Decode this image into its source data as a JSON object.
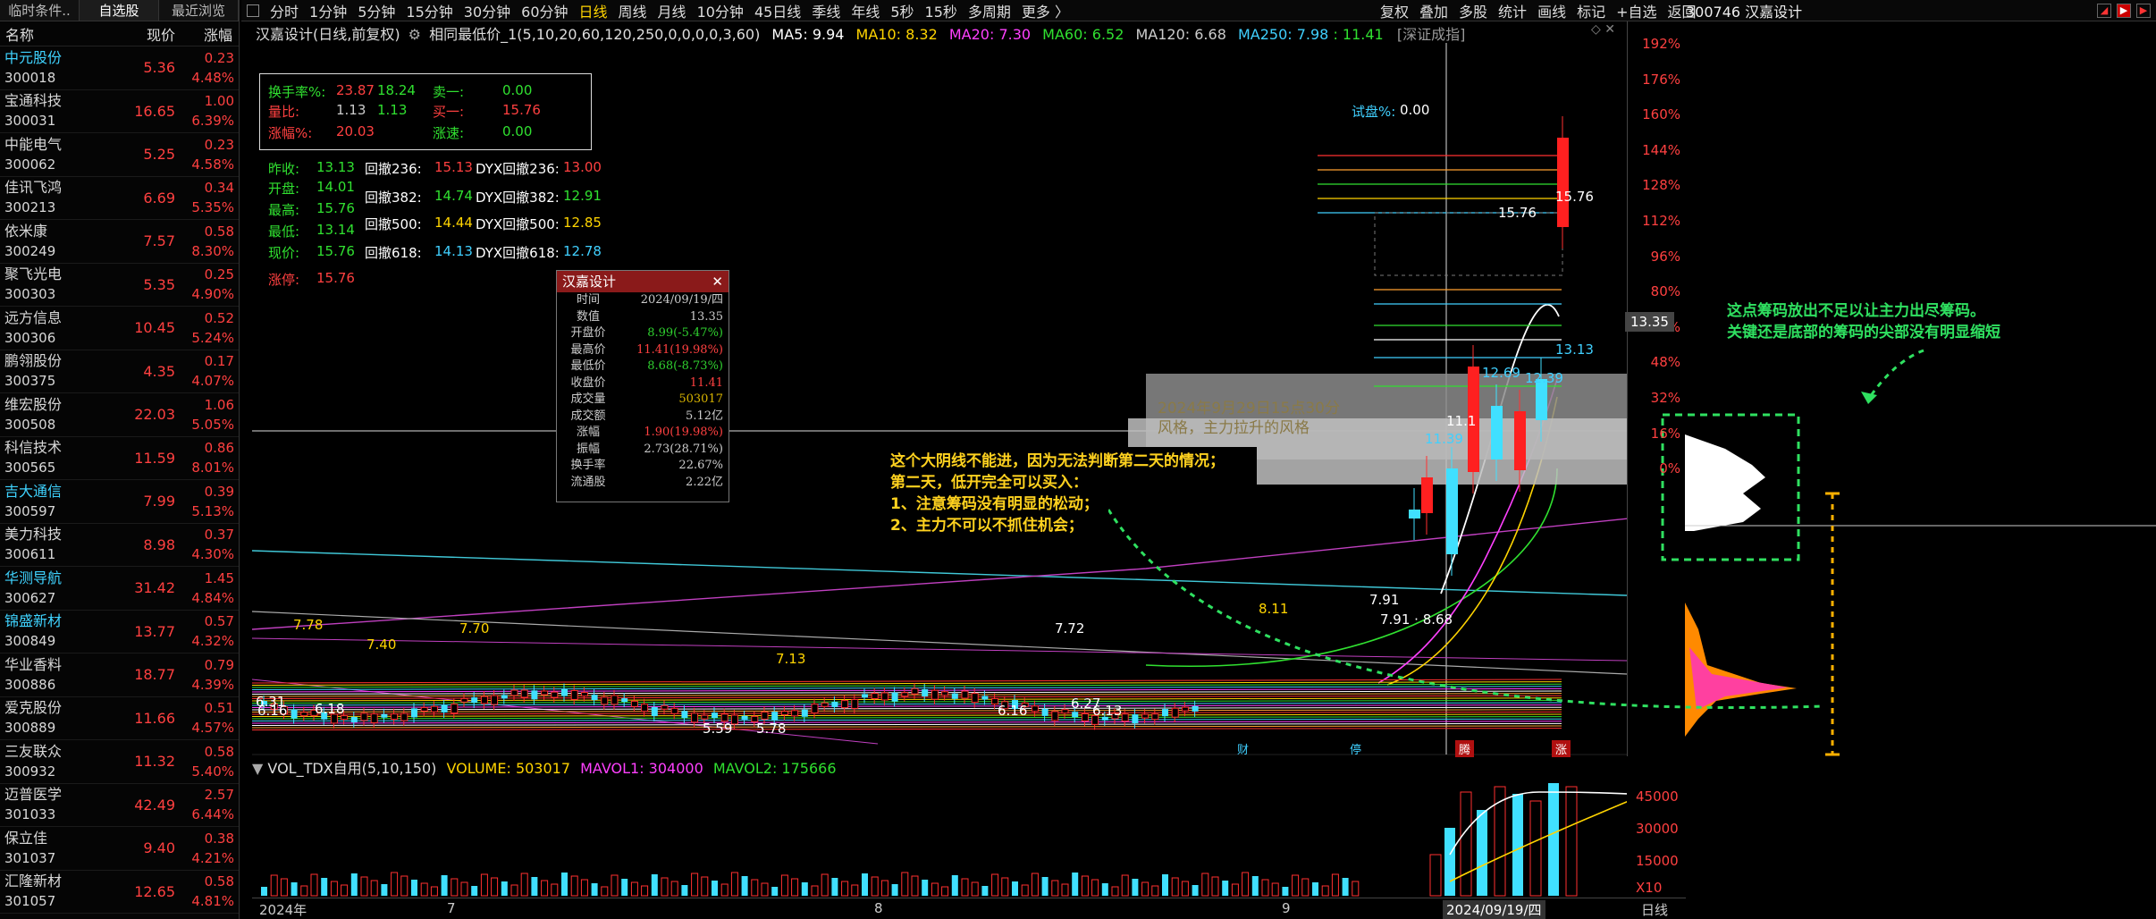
{
  "left_tabs": [
    "临时条件..",
    "自选股",
    "最近浏览"
  ],
  "list_header": {
    "name": "名称",
    "price": "现价",
    "pct": "涨幅"
  },
  "stocks": [
    {
      "name": "中元股份",
      "code": "300018",
      "price": "5.36",
      "chg": "0.23",
      "pct": "4.48%",
      "hl": true
    },
    {
      "name": "宝通科技",
      "code": "300031",
      "price": "16.65",
      "chg": "1.00",
      "pct": "6.39%",
      "hl": false
    },
    {
      "name": "中能电气",
      "code": "300062",
      "price": "5.25",
      "chg": "0.23",
      "pct": "4.58%",
      "hl": false
    },
    {
      "name": "佳讯飞鸿",
      "code": "300213",
      "price": "6.69",
      "chg": "0.34",
      "pct": "5.35%",
      "hl": false
    },
    {
      "name": "依米康",
      "code": "300249",
      "price": "7.57",
      "chg": "0.58",
      "pct": "8.30%",
      "hl": false
    },
    {
      "name": "聚飞光电",
      "code": "300303",
      "price": "5.35",
      "chg": "0.25",
      "pct": "4.90%",
      "hl": false
    },
    {
      "name": "远方信息",
      "code": "300306",
      "price": "10.45",
      "chg": "0.52",
      "pct": "5.24%",
      "hl": false
    },
    {
      "name": "鹏翎股份",
      "code": "300375",
      "price": "4.35",
      "chg": "0.17",
      "pct": "4.07%",
      "hl": false
    },
    {
      "name": "维宏股份",
      "code": "300508",
      "price": "22.03",
      "chg": "1.06",
      "pct": "5.05%",
      "hl": false
    },
    {
      "name": "科信技术",
      "code": "300565",
      "price": "11.59",
      "chg": "0.86",
      "pct": "8.01%",
      "hl": false
    },
    {
      "name": "吉大通信",
      "code": "300597",
      "price": "7.99",
      "chg": "0.39",
      "pct": "5.13%",
      "hl": true
    },
    {
      "name": "美力科技",
      "code": "300611",
      "price": "8.98",
      "chg": "0.37",
      "pct": "4.30%",
      "hl": false
    },
    {
      "name": "华测导航",
      "code": "300627",
      "price": "31.42",
      "chg": "1.45",
      "pct": "4.84%",
      "hl": true
    },
    {
      "name": "锦盛新材",
      "code": "300849",
      "price": "13.77",
      "chg": "0.57",
      "pct": "4.32%",
      "hl": true
    },
    {
      "name": "华业香料",
      "code": "300886",
      "price": "18.77",
      "chg": "0.79",
      "pct": "4.39%",
      "hl": false
    },
    {
      "name": "爱克股份",
      "code": "300889",
      "price": "11.66",
      "chg": "0.51",
      "pct": "4.57%",
      "hl": false
    },
    {
      "name": "三友联众",
      "code": "300932",
      "price": "11.32",
      "chg": "0.58",
      "pct": "5.40%",
      "hl": false
    },
    {
      "name": "迈普医学",
      "code": "301033",
      "price": "42.49",
      "chg": "2.57",
      "pct": "6.44%",
      "hl": false
    },
    {
      "name": "保立佳",
      "code": "301037",
      "price": "9.40",
      "chg": "0.38",
      "pct": "4.21%",
      "hl": false
    },
    {
      "name": "汇隆新材",
      "code": "301057",
      "price": "12.65",
      "chg": "0.58",
      "pct": "4.81%",
      "hl": false
    }
  ],
  "periods": [
    "分时",
    "1分钟",
    "5分钟",
    "15分钟",
    "30分钟",
    "60分钟",
    "日线",
    "周线",
    "月线",
    "10分钟",
    "45日线",
    "季线",
    "年线",
    "5秒",
    "15秒",
    "多周期",
    "更多 〉"
  ],
  "active_period": "日线",
  "right_buttons": [
    "复权",
    "叠加",
    "多股",
    "统计",
    "画线",
    "标记",
    "+自选",
    "返回"
  ],
  "stock_code_title": "300746 汉嘉设计",
  "header": {
    "title": "汉嘉设计(日线,前复权)",
    "indicator": "相同最低价_1(5,10,20,60,120,250,0,0,0,0,3,60)",
    "ma5": "MA5: 9.94",
    "ma10": "MA10: 8.32",
    "ma20": "MA20: 7.30",
    "ma60": "MA60: 6.52",
    "ma120": "MA120: 6.68",
    "ma250": "MA250: 7.98",
    "ma_extra": ": 11.41",
    "exchange": "[深证成指]"
  },
  "box": {
    "turnover_label": "换手率%:",
    "turnover1": "23.87",
    "turnover2": "18.24",
    "sell1_label": "卖一:",
    "sell1": "0.00",
    "vol_ratio_label": "量比:",
    "vol_ratio1": "1.13",
    "vol_ratio2": "1.13",
    "buy1_label": "买一:",
    "buy1": "15.76",
    "rise_label": "涨幅%:",
    "rise": "20.03",
    "speed_label": "涨速:",
    "speed": "0.00"
  },
  "stats": {
    "prev_close_label": "昨收:",
    "prev_close": "13.13",
    "open_label": "开盘:",
    "open": "14.01",
    "high_label": "最高:",
    "high": "15.76",
    "low_label": "最低:",
    "low": "13.14",
    "now_label": "现价:",
    "now": "15.76",
    "limit_label": "涨停:",
    "limit": "15.76",
    "r236_label": "回撤236:",
    "r236": "15.13",
    "r382_label": "回撤382:",
    "r382": "14.74",
    "r500_label": "回撤500:",
    "r500": "14.44",
    "r618_label": "回撤618:",
    "r618": "14.13",
    "d236_label": "DYX回撤236:",
    "d236": "13.00",
    "d382_label": "DYX回撤382:",
    "d382": "12.91",
    "d500_label": "DYX回撤500:",
    "d500": "12.85",
    "d618_label": "DYX回撤618:",
    "d618": "12.78"
  },
  "trial": {
    "label": "试盘%:",
    "value": "0.00"
  },
  "popup": {
    "title": "汉嘉设计",
    "rows": [
      {
        "k": "时间",
        "v": "2024/09/19/四",
        "c": "#ccc"
      },
      {
        "k": "数值",
        "v": "13.35",
        "c": "#ccc"
      },
      {
        "k": "开盘价",
        "v": "8.99(-5.47%)",
        "c": "#2fd02f"
      },
      {
        "k": "最高价",
        "v": "11.41(19.98%)",
        "c": "#ff4040"
      },
      {
        "k": "最低价",
        "v": "8.68(-8.73%)",
        "c": "#2fd02f"
      },
      {
        "k": "收盘价",
        "v": "11.41",
        "c": "#ff4040"
      },
      {
        "k": "成交量",
        "v": "503017",
        "c": "#d8b400"
      },
      {
        "k": "成交额",
        "v": "5.12亿",
        "c": "#ccc"
      },
      {
        "k": "涨幅",
        "v": "1.90(19.98%)",
        "c": "#ff4040"
      },
      {
        "k": "振幅",
        "v": "2.73(28.71%)",
        "c": "#ccc"
      },
      {
        "k": "换手率",
        "v": "22.67%",
        "c": "#ccc"
      },
      {
        "k": "流通股",
        "v": "2.22亿",
        "c": "#ccc"
      }
    ]
  },
  "annotation_main": [
    "这个大阴线不能进，因为无法判断第二天的情况；",
    "第二天，低开完全可以买入：",
    "1、注意筹码没有明显的松动；",
    "2、主力不可以不抓住机会；"
  ],
  "annotation_side": [
    "这点筹码放出不足以让主力出尽筹码。",
    "关键还是底部的筹码的尖部没有明显缩短"
  ],
  "ghost_text": [
    "2024年9月29日15点30分",
    "风格，主力拉升的风格"
  ],
  "price_labels": {
    "top_high": "15.76",
    "top_high2": "15.76",
    "p1313": "13.13",
    "p1269": "12.69",
    "p1239": "12.39",
    "p1139": "11.39",
    "p1141": "11.1",
    "p791": "7.91",
    "p791b": "7.91 · 8.68",
    "p811": "8.11",
    "p778": "7.78",
    "p740": "7.40",
    "p770": "7.70",
    "p713": "7.13",
    "p772": "7.72",
    "p631": "6.31",
    "p616": "6.16",
    "p618": "6.18",
    "p559": "5.59",
    "p578": "5.78",
    "p616b": "6.16",
    "p613": "6.13",
    "p627": "6.27"
  },
  "current_price_tag": "13.35",
  "pct_axis": [
    "192%",
    "176%",
    "160%",
    "144%",
    "128%",
    "112%",
    "96%",
    "80%",
    "64%",
    "48%",
    "32%",
    "16%",
    "0%"
  ],
  "volume_header": {
    "title": "VOL_TDX自用(5,10,150)",
    "volume": "VOLUME: 503017",
    "mavol1": "MAVOL1: 304000",
    "mavol2": "MAVOL2: 175666"
  },
  "volume_axis": [
    "45000",
    "30000",
    "15000",
    "X10"
  ],
  "date_axis": {
    "d1": "2024年",
    "d2": "7",
    "d3": "8",
    "d4": "9",
    "d5": "2024/09/19/四",
    "d6": "日线"
  },
  "signals": {
    "cai": "财",
    "ting": "停",
    "teng": "腾",
    "zhang": "涨"
  },
  "colors": {
    "up": "#ff3030",
    "down": "#40e0ff",
    "ma5": "#ffffff",
    "ma10": "#ffd400",
    "ma20": "#ff40ff",
    "ma60": "#30e030",
    "ma120": "#cccccc",
    "ma250": "#40d0ff"
  }
}
